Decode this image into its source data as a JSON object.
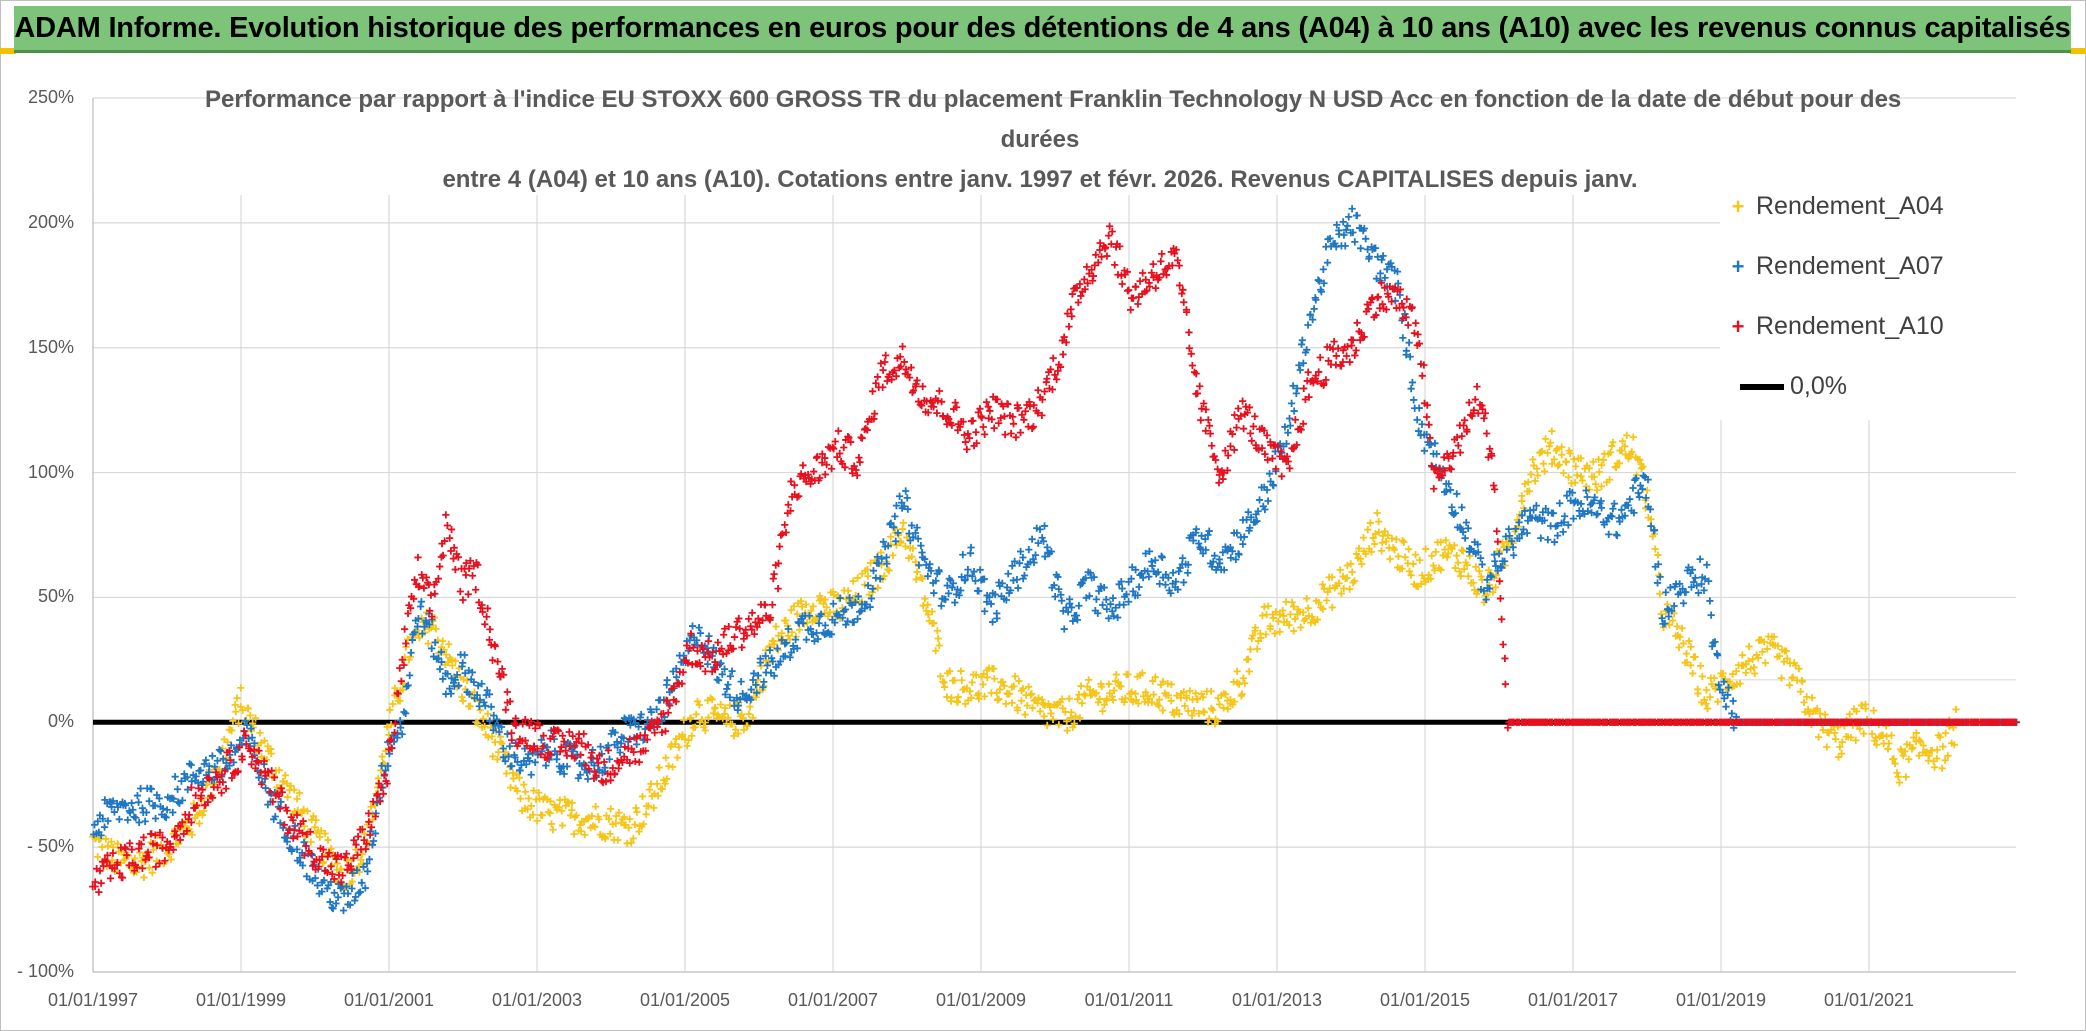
{
  "banner": {
    "title": "ADAM Informe. Evolution historique des performances en euros pour des détentions de 4 ans (A04) à 10 ans (A10) avec les revenus connus capitalisés"
  },
  "colors": {
    "banner_bg": "#7dc47a",
    "A04": "#f5c518",
    "A07": "#1f77c4",
    "A10": "#e8101e",
    "zero_line": "#000000",
    "grid": "#d9d9d9"
  },
  "chart_data": {
    "type": "scatter",
    "title_lines": [
      "Performance par rapport à l'indice EU STOXX 600 GROSS TR  du placement Franklin Technology N USD Acc en fonction de la date de début pour des",
      "durées",
      "entre 4 (A04) et 10 ans (A10). Cotations entre janv. 1997 et févr. 2026. Revenus CAPITALISES depuis janv."
    ],
    "y_ticks": [
      "250%",
      "200%",
      "150%",
      "100%",
      "50%",
      "0%",
      "- 50%",
      "- 100%"
    ],
    "x_ticks": [
      "01/01/1997",
      "01/01/1999",
      "01/01/2001",
      "01/01/2003",
      "01/01/2005",
      "01/01/2007",
      "01/01/2009",
      "01/01/2011",
      "01/01/2013",
      "01/01/2015",
      "01/01/2017",
      "01/01/2019",
      "01/01/2021"
    ],
    "ylim": [
      -100,
      250
    ],
    "xlim": [
      1997.0,
      2023.1
    ],
    "legend": {
      "position": "right",
      "entries": [
        "Rendement_A04",
        "Rendement_A07",
        "Rendement_A10",
        "0,0%"
      ]
    },
    "series": [
      {
        "name": "Rendement_A04",
        "color": "#f5c518",
        "points": [
          [
            1997.0,
            -48
          ],
          [
            1997.3,
            -55
          ],
          [
            1997.6,
            -57
          ],
          [
            1998.0,
            -50
          ],
          [
            1998.4,
            -38
          ],
          [
            1998.8,
            -10
          ],
          [
            1999.0,
            8
          ],
          [
            1999.3,
            -10
          ],
          [
            1999.7,
            -30
          ],
          [
            2000.0,
            -45
          ],
          [
            2000.4,
            -62
          ],
          [
            2000.7,
            -50
          ],
          [
            2001.0,
            -5
          ],
          [
            2001.3,
            30
          ],
          [
            2001.6,
            40
          ],
          [
            2002.0,
            15
          ],
          [
            2002.4,
            -5
          ],
          [
            2002.8,
            -30
          ],
          [
            2003.2,
            -37
          ],
          [
            2003.6,
            -38
          ],
          [
            2004.0,
            -40
          ],
          [
            2004.3,
            -42
          ],
          [
            2004.6,
            -30
          ],
          [
            2004.9,
            -12
          ],
          [
            2005.2,
            5
          ],
          [
            2005.6,
            0
          ],
          [
            2005.9,
            3
          ],
          [
            2006.2,
            30
          ],
          [
            2006.5,
            40
          ],
          [
            2006.8,
            48
          ],
          [
            2007.1,
            45
          ],
          [
            2007.4,
            52
          ],
          [
            2007.7,
            62
          ],
          [
            2008.0,
            78
          ],
          [
            2008.3,
            48
          ],
          [
            2008.6,
            15
          ],
          [
            2008.9,
            14
          ],
          [
            2009.2,
            15
          ],
          [
            2009.5,
            12
          ],
          [
            2009.8,
            5
          ],
          [
            2010.2,
            2
          ],
          [
            2010.5,
            10
          ],
          [
            2010.8,
            12
          ],
          [
            2011.1,
            13
          ],
          [
            2011.4,
            13
          ],
          [
            2011.7,
            8
          ],
          [
            2012.0,
            7
          ],
          [
            2012.3,
            5
          ],
          [
            2012.6,
            18
          ],
          [
            2012.9,
            40
          ],
          [
            2013.2,
            42
          ],
          [
            2013.5,
            45
          ],
          [
            2013.8,
            52
          ],
          [
            2014.1,
            60
          ],
          [
            2014.4,
            78
          ],
          [
            2014.7,
            68
          ],
          [
            2015.0,
            60
          ],
          [
            2015.3,
            68
          ],
          [
            2015.6,
            65
          ],
          [
            2015.9,
            52
          ],
          [
            2016.2,
            70
          ],
          [
            2016.5,
            100
          ],
          [
            2016.8,
            110
          ],
          [
            2017.1,
            102
          ],
          [
            2017.4,
            98
          ],
          [
            2017.7,
            108
          ],
          [
            2017.9,
            110
          ],
          [
            2018.1,
            90
          ],
          [
            2018.3,
            45
          ],
          [
            2018.6,
            30
          ],
          [
            2018.9,
            10
          ],
          [
            2019.2,
            18
          ],
          [
            2019.5,
            25
          ],
          [
            2019.8,
            28
          ],
          [
            2020.1,
            18
          ],
          [
            2020.4,
            0
          ],
          [
            2020.7,
            -8
          ],
          [
            2021.0,
            2
          ],
          [
            2021.3,
            -5
          ],
          [
            2021.5,
            -18
          ],
          [
            2021.8,
            -10
          ],
          [
            2022.1,
            -12
          ],
          [
            2022.3,
            0
          ],
          [
            2022.7,
            0
          ],
          [
            2023.1,
            0
          ]
        ]
      },
      {
        "name": "Rendement_A07",
        "color": "#1f77c4",
        "points": [
          [
            1997.0,
            -42
          ],
          [
            1997.3,
            -35
          ],
          [
            1997.7,
            -33
          ],
          [
            1998.0,
            -32
          ],
          [
            1998.4,
            -20
          ],
          [
            1998.8,
            -17
          ],
          [
            1999.1,
            -5
          ],
          [
            1999.4,
            -30
          ],
          [
            1999.8,
            -50
          ],
          [
            2000.1,
            -65
          ],
          [
            2000.4,
            -72
          ],
          [
            2000.7,
            -60
          ],
          [
            2001.0,
            -10
          ],
          [
            2001.2,
            0
          ],
          [
            2001.4,
            45
          ],
          [
            2001.6,
            35
          ],
          [
            2001.8,
            15
          ],
          [
            2002.0,
            22
          ],
          [
            2002.3,
            10
          ],
          [
            2002.6,
            -10
          ],
          [
            2002.9,
            -18
          ],
          [
            2003.2,
            -10
          ],
          [
            2003.6,
            -18
          ],
          [
            2003.9,
            -15
          ],
          [
            2004.2,
            -5
          ],
          [
            2004.6,
            0
          ],
          [
            2004.9,
            15
          ],
          [
            2005.2,
            38
          ],
          [
            2005.5,
            20
          ],
          [
            2005.8,
            10
          ],
          [
            2006.0,
            18
          ],
          [
            2006.3,
            25
          ],
          [
            2006.6,
            38
          ],
          [
            2006.9,
            40
          ],
          [
            2007.3,
            45
          ],
          [
            2007.6,
            55
          ],
          [
            2008.0,
            88
          ],
          [
            2008.3,
            62
          ],
          [
            2008.6,
            50
          ],
          [
            2008.9,
            65
          ],
          [
            2009.2,
            45
          ],
          [
            2009.5,
            58
          ],
          [
            2009.9,
            75
          ],
          [
            2010.2,
            40
          ],
          [
            2010.5,
            55
          ],
          [
            2010.8,
            45
          ],
          [
            2011.1,
            55
          ],
          [
            2011.4,
            65
          ],
          [
            2011.7,
            55
          ],
          [
            2012.0,
            75
          ],
          [
            2012.3,
            65
          ],
          [
            2012.6,
            75
          ],
          [
            2012.9,
            90
          ],
          [
            2013.2,
            115
          ],
          [
            2013.5,
            160
          ],
          [
            2013.8,
            190
          ],
          [
            2014.1,
            200
          ],
          [
            2014.4,
            185
          ],
          [
            2014.7,
            175
          ],
          [
            2015.0,
            120
          ],
          [
            2015.3,
            100
          ],
          [
            2015.6,
            80
          ],
          [
            2015.9,
            55
          ],
          [
            2016.2,
            70
          ],
          [
            2016.5,
            82
          ],
          [
            2016.8,
            78
          ],
          [
            2017.1,
            88
          ],
          [
            2017.4,
            85
          ],
          [
            2017.7,
            80
          ],
          [
            2017.9,
            90
          ],
          [
            2018.1,
            95
          ],
          [
            2018.3,
            45
          ],
          [
            2018.6,
            55
          ],
          [
            2018.9,
            60
          ],
          [
            2019.0,
            28
          ],
          [
            2019.3,
            0
          ],
          [
            2019.8,
            0
          ],
          [
            2020.5,
            0
          ],
          [
            2021.5,
            0
          ],
          [
            2023.1,
            0
          ]
        ]
      },
      {
        "name": "Rendement_A10",
        "color": "#e8101e",
        "points": [
          [
            1997.0,
            -65
          ],
          [
            1997.3,
            -58
          ],
          [
            1997.7,
            -52
          ],
          [
            1998.0,
            -50
          ],
          [
            1998.4,
            -30
          ],
          [
            1998.8,
            -20
          ],
          [
            1999.1,
            -8
          ],
          [
            1999.4,
            -25
          ],
          [
            1999.7,
            -40
          ],
          [
            2000.1,
            -55
          ],
          [
            2000.4,
            -60
          ],
          [
            2000.7,
            -45
          ],
          [
            2001.0,
            -20
          ],
          [
            2001.2,
            25
          ],
          [
            2001.4,
            60
          ],
          [
            2001.6,
            45
          ],
          [
            2001.8,
            80
          ],
          [
            2002.0,
            55
          ],
          [
            2002.2,
            60
          ],
          [
            2002.4,
            35
          ],
          [
            2002.7,
            -2
          ],
          [
            2003.0,
            -5
          ],
          [
            2003.3,
            -10
          ],
          [
            2003.6,
            -8
          ],
          [
            2003.9,
            -20
          ],
          [
            2004.2,
            -12
          ],
          [
            2004.5,
            -10
          ],
          [
            2004.8,
            5
          ],
          [
            2005.1,
            30
          ],
          [
            2005.4,
            25
          ],
          [
            2005.7,
            35
          ],
          [
            2006.0,
            40
          ],
          [
            2006.2,
            45
          ],
          [
            2006.5,
            95
          ],
          [
            2006.8,
            100
          ],
          [
            2007.1,
            110
          ],
          [
            2007.4,
            105
          ],
          [
            2007.7,
            140
          ],
          [
            2008.0,
            145
          ],
          [
            2008.3,
            130
          ],
          [
            2008.6,
            125
          ],
          [
            2008.9,
            115
          ],
          [
            2009.2,
            125
          ],
          [
            2009.5,
            120
          ],
          [
            2009.8,
            125
          ],
          [
            2010.1,
            145
          ],
          [
            2010.4,
            175
          ],
          [
            2010.8,
            195
          ],
          [
            2011.1,
            170
          ],
          [
            2011.4,
            180
          ],
          [
            2011.7,
            185
          ],
          [
            2012.0,
            130
          ],
          [
            2012.3,
            100
          ],
          [
            2012.6,
            125
          ],
          [
            2012.9,
            110
          ],
          [
            2013.2,
            100
          ],
          [
            2013.5,
            135
          ],
          [
            2013.8,
            145
          ],
          [
            2014.1,
            150
          ],
          [
            2014.4,
            170
          ],
          [
            2014.7,
            170
          ],
          [
            2015.0,
            155
          ],
          [
            2015.2,
            95
          ],
          [
            2015.5,
            110
          ],
          [
            2015.8,
            130
          ],
          [
            2016.0,
            105
          ],
          [
            2016.2,
            0
          ],
          [
            2017.0,
            0
          ],
          [
            2018.0,
            0
          ],
          [
            2019.0,
            0
          ],
          [
            2020.5,
            0
          ],
          [
            2022.0,
            0
          ],
          [
            2023.1,
            0
          ]
        ]
      }
    ]
  }
}
